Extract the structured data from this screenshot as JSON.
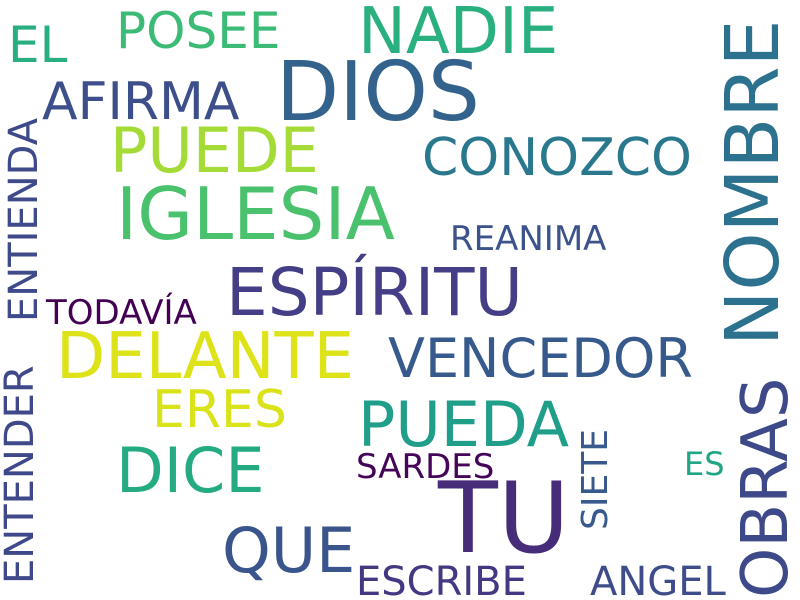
{
  "words": {
    "dios": "DIOS",
    "tu": "TU",
    "iglesia": "IGLESIA",
    "espiritu": "ESPÍRITU",
    "delante": "DELANTE",
    "nadie": "NADIE",
    "puede": "PUEDE",
    "pueda": "PUEDA",
    "dice": "DICE",
    "que": "QUE",
    "vencedor": "VENCEDOR",
    "conozco": "CONOZCO",
    "afirma": "AFIRMA",
    "posee": "POSEE",
    "eres": "ERES",
    "el": "EL",
    "escribe": "ESCRIBE",
    "angel": "ANGEL",
    "reanima": "REANIMA",
    "todavia": "TODAVÍA",
    "sardes": "SARDES",
    "es": "ES",
    "nombre": "NOMBRE",
    "obras": "OBRAS",
    "entender": "ENTENDER",
    "entienda": "ENTIENDA",
    "siete": "SIETE"
  },
  "colors": {
    "background": "#ffffff",
    "palette": "viridis"
  }
}
